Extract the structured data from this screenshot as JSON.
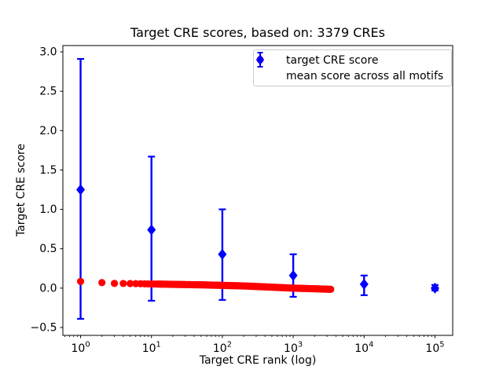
{
  "figure": {
    "title": "Target CRE scores, based on: 3379 CREs",
    "xlabel": "Target CRE rank (log)",
    "ylabel": "Target CRE score"
  },
  "legend": {
    "position": "upper right",
    "items": [
      {
        "label": "target CRE score",
        "marker": "circle",
        "color": "#ff0000"
      },
      {
        "label": "mean score across all motifs",
        "marker": "diamond-with-errorbar",
        "color": "#0000ff"
      }
    ]
  },
  "colors": {
    "target_series": "#ff0000",
    "mean_series": "#0000ff",
    "axis": "#000000",
    "legend_border": "#cccccc",
    "background": "#ffffff"
  },
  "chart_data": {
    "type": "scatter",
    "title": "Target CRE scores, based on: 3379 CREs",
    "xlabel": "Target CRE rank (log)",
    "ylabel": "Target CRE score",
    "x_scale": "log",
    "xlim_log10": [
      -0.25,
      5.25
    ],
    "ylim": [
      -0.6,
      3.08
    ],
    "grid": false,
    "legend_position": "upper right",
    "y_ticks": [
      {
        "v": -0.5,
        "label": "−0.5"
      },
      {
        "v": 0.0,
        "label": "0.0"
      },
      {
        "v": 0.5,
        "label": "0.5"
      },
      {
        "v": 1.0,
        "label": "1.0"
      },
      {
        "v": 1.5,
        "label": "1.5"
      },
      {
        "v": 2.0,
        "label": "2.0"
      },
      {
        "v": 2.5,
        "label": "2.5"
      },
      {
        "v": 3.0,
        "label": "3.0"
      }
    ],
    "x_major_ticks": [
      {
        "v": 1,
        "base": "10",
        "exp": "0"
      },
      {
        "v": 10,
        "base": "10",
        "exp": "1"
      },
      {
        "v": 100,
        "base": "10",
        "exp": "2"
      },
      {
        "v": 1000,
        "base": "10",
        "exp": "3"
      },
      {
        "v": 10000,
        "base": "10",
        "exp": "4"
      },
      {
        "v": 100000,
        "base": "10",
        "exp": "5"
      }
    ],
    "series": [
      {
        "name": "mean score across all motifs",
        "type": "errorbar",
        "marker": "diamond",
        "color": "#0000ff",
        "points": [
          {
            "x": 1,
            "y": 1.25,
            "err_low": -0.39,
            "err_high": 2.91
          },
          {
            "x": 10,
            "y": 0.74,
            "err_low": -0.16,
            "err_high": 1.67
          },
          {
            "x": 100,
            "y": 0.43,
            "err_low": -0.15,
            "err_high": 1.0
          },
          {
            "x": 1000,
            "y": 0.16,
            "err_low": -0.11,
            "err_high": 0.43
          },
          {
            "x": 10000,
            "y": 0.05,
            "err_low": -0.09,
            "err_high": 0.16
          },
          {
            "x": 100000,
            "y": 0.0,
            "err_low": -0.03,
            "err_high": 0.04
          }
        ]
      },
      {
        "name": "target CRE score",
        "type": "scatter-dense",
        "marker": "circle",
        "color": "#ff0000",
        "n_points": 3379,
        "rank_range": [
          1,
          3379
        ],
        "score_samples": [
          [
            1,
            0.085
          ],
          [
            2,
            0.07
          ],
          [
            3,
            0.06
          ],
          [
            5,
            0.058
          ],
          [
            10,
            0.053
          ],
          [
            20,
            0.048
          ],
          [
            50,
            0.042
          ],
          [
            100,
            0.035
          ],
          [
            200,
            0.028
          ],
          [
            500,
            0.012
          ],
          [
            1000,
            0.0
          ],
          [
            2000,
            -0.008
          ],
          [
            3379,
            -0.015
          ]
        ]
      }
    ]
  }
}
